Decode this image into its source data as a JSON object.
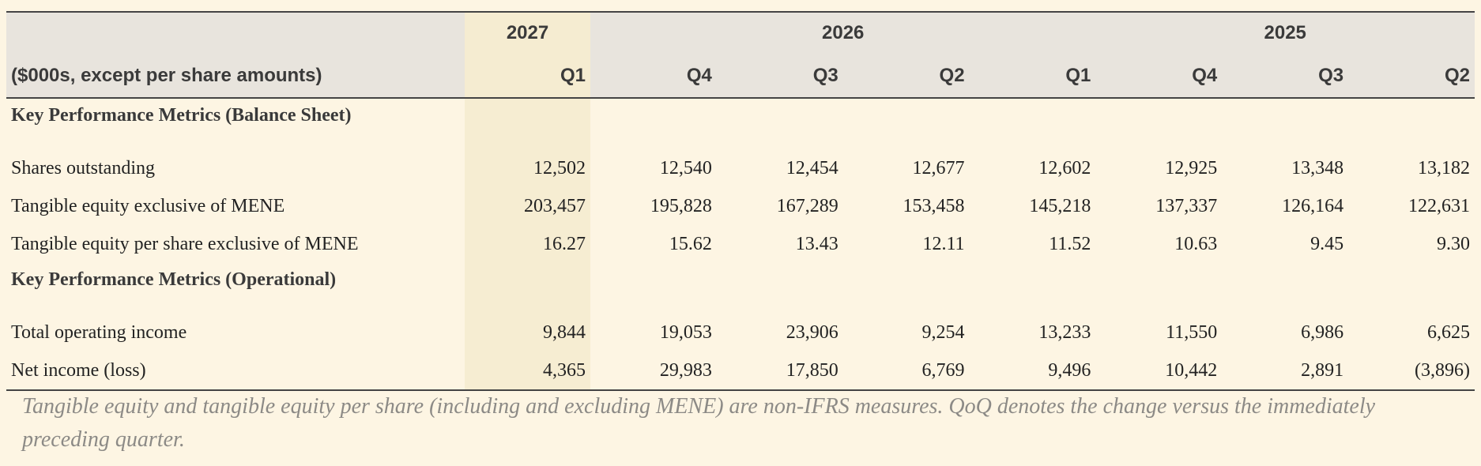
{
  "header": {
    "label": "($000s, except per share amounts)",
    "years": [
      "2027",
      "2026",
      "2025"
    ],
    "quarters": [
      "Q1",
      "Q4",
      "Q3",
      "Q2",
      "Q1",
      "Q4",
      "Q3",
      "Q2"
    ]
  },
  "sections": [
    {
      "title": "Key Performance Metrics (Balance Sheet)",
      "rows": [
        {
          "label": "Shares outstanding",
          "values": [
            "12,502",
            "12,540",
            "12,454",
            "12,677",
            "12,602",
            "12,925",
            "13,348",
            "13,182"
          ]
        },
        {
          "label": "Tangible equity exclusive of MENE",
          "values": [
            "203,457",
            "195,828",
            "167,289",
            "153,458",
            "145,218",
            "137,337",
            "126,164",
            "122,631"
          ]
        },
        {
          "label": "Tangible equity per share exclusive of MENE",
          "values": [
            "16.27",
            "15.62",
            "13.43",
            "12.11",
            "11.52",
            "10.63",
            "9.45",
            "9.30"
          ]
        }
      ]
    },
    {
      "title": "Key Performance Metrics (Operational)",
      "rows": [
        {
          "label": "Total operating income",
          "values": [
            "9,844",
            "19,053",
            "23,906",
            "9,254",
            "13,233",
            "11,550",
            "6,986",
            "6,625"
          ]
        },
        {
          "label": "Net income (loss)",
          "values": [
            "4,365",
            "29,983",
            "17,850",
            "6,769",
            "9,496",
            "10,442",
            "2,891",
            "(3,896)"
          ]
        }
      ]
    }
  ],
  "footnote": "Tangible equity and tangible equity per share (including and excluding MENE) are non-IFRS measures. QoQ denotes the change versus the immediately preceding quarter."
}
